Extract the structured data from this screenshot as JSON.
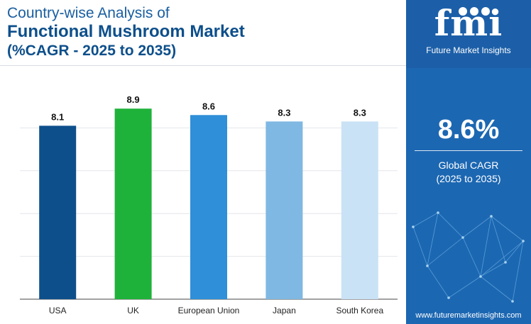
{
  "title": {
    "line1": "Country-wise Analysis of",
    "line2": "Functional Mushroom Market",
    "line3": "(%CAGR - 2025 to 2035)"
  },
  "chart_data": {
    "type": "bar",
    "categories": [
      "USA",
      "UK",
      "European Union",
      "Japan",
      "South Korea"
    ],
    "values": [
      8.1,
      8.9,
      8.6,
      8.3,
      8.3
    ],
    "data_labels": [
      "8.1",
      "8.9",
      "8.6",
      "8.3",
      "8.3"
    ],
    "colors": [
      "#0d4f8b",
      "#1fb23a",
      "#2f8fd8",
      "#7fb8e2",
      "#c9e2f5"
    ],
    "title": "",
    "xlabel": "",
    "ylabel": "",
    "ylim": [
      0,
      10
    ],
    "grid": true,
    "legend": "none"
  },
  "sidebar": {
    "logo_text": "fmi",
    "logo_subtitle": "Future Market Insights",
    "global_cagr_value": "8.6%",
    "global_cagr_label": "Global CAGR",
    "global_cagr_period": "(2025 to 2035)",
    "website": "www.futuremarketinsights.com"
  }
}
